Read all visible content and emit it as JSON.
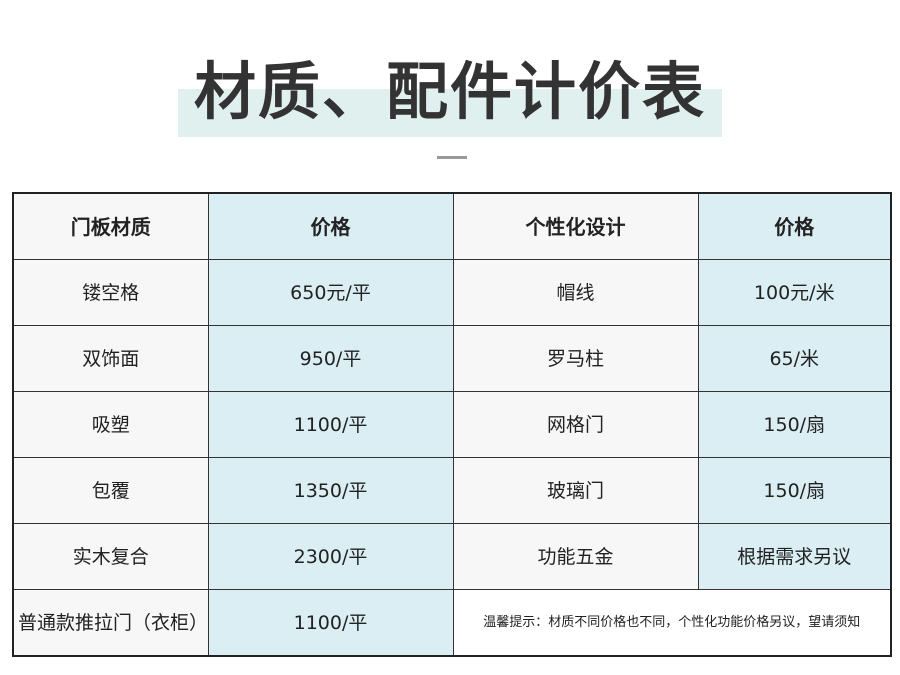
{
  "title": "材质、配件计价表",
  "colors": {
    "title_band": "#dff0ee",
    "price_column": "#daeef3",
    "label_column": "#f7f7f7"
  },
  "headers": [
    "门板材质",
    "价格",
    "个性化设计",
    "价格"
  ],
  "rows": [
    [
      "镂空格",
      "650元/平",
      "帽线",
      "100元/米"
    ],
    [
      "双饰面",
      "950/平",
      "罗马柱",
      "65/米"
    ],
    [
      "吸塑",
      "1100/平",
      "网格门",
      "150/扇"
    ],
    [
      "包覆",
      "1350/平",
      "玻璃门",
      "150/扇"
    ],
    [
      "实木复合",
      "2300/平",
      "功能五金",
      "根据需求另议"
    ]
  ],
  "last_row": {
    "material": "普通款推拉门（衣柜）",
    "price": "1100/平",
    "note": "温馨提示：材质不同价格也不同，个性化功能价格另议，望请须知"
  }
}
